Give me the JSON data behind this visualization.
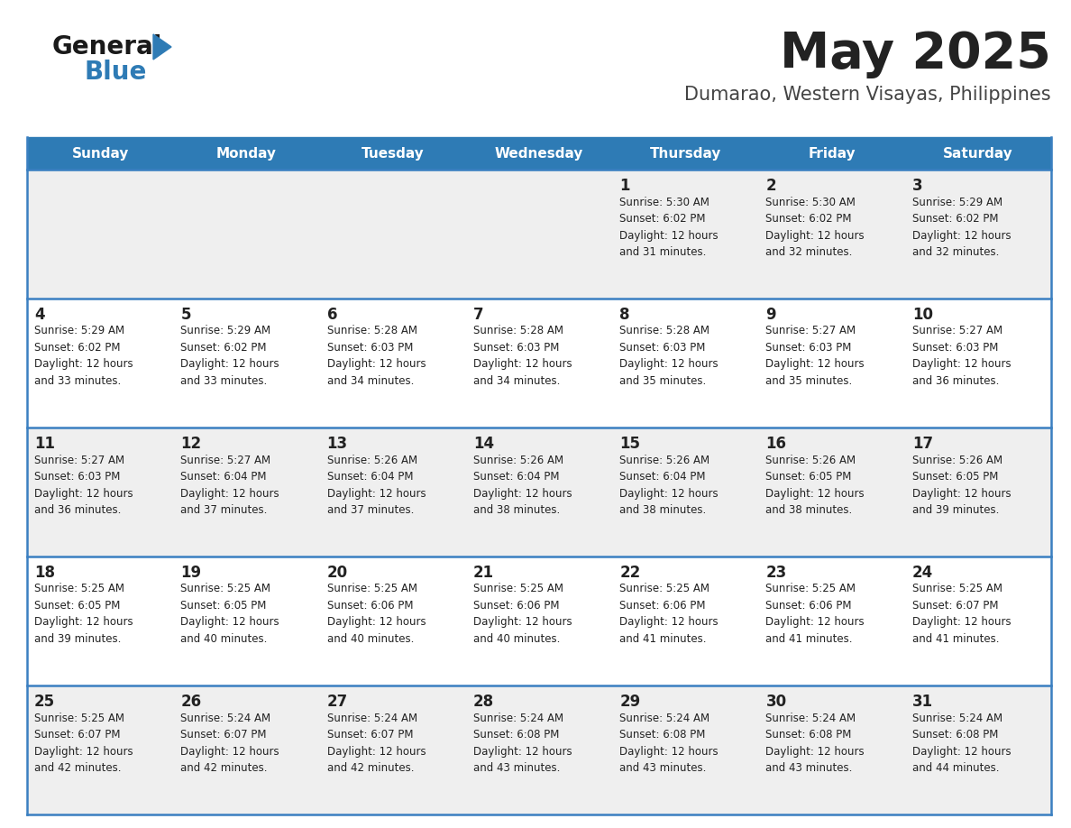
{
  "title": "May 2025",
  "subtitle": "Dumarao, Western Visayas, Philippines",
  "days_of_week": [
    "Sunday",
    "Monday",
    "Tuesday",
    "Wednesday",
    "Thursday",
    "Friday",
    "Saturday"
  ],
  "header_bg": "#2E7BB5",
  "header_text": "#FFFFFF",
  "row_bg_odd": "#EFEFEF",
  "row_bg_even": "#FFFFFF",
  "cell_border_color": "#3A7FC1",
  "day_num_color": "#222222",
  "info_text_color": "#222222",
  "title_color": "#222222",
  "subtitle_color": "#444444",
  "logo_general_color": "#1a1a1a",
  "logo_blue_color": "#2E7BB5",
  "calendar": [
    [
      null,
      null,
      null,
      null,
      {
        "day": 1,
        "sunrise": "5:30 AM",
        "sunset": "6:02 PM",
        "daylight_min": 31
      },
      {
        "day": 2,
        "sunrise": "5:30 AM",
        "sunset": "6:02 PM",
        "daylight_min": 32
      },
      {
        "day": 3,
        "sunrise": "5:29 AM",
        "sunset": "6:02 PM",
        "daylight_min": 32
      }
    ],
    [
      {
        "day": 4,
        "sunrise": "5:29 AM",
        "sunset": "6:02 PM",
        "daylight_min": 33
      },
      {
        "day": 5,
        "sunrise": "5:29 AM",
        "sunset": "6:02 PM",
        "daylight_min": 33
      },
      {
        "day": 6,
        "sunrise": "5:28 AM",
        "sunset": "6:03 PM",
        "daylight_min": 34
      },
      {
        "day": 7,
        "sunrise": "5:28 AM",
        "sunset": "6:03 PM",
        "daylight_min": 34
      },
      {
        "day": 8,
        "sunrise": "5:28 AM",
        "sunset": "6:03 PM",
        "daylight_min": 35
      },
      {
        "day": 9,
        "sunrise": "5:27 AM",
        "sunset": "6:03 PM",
        "daylight_min": 35
      },
      {
        "day": 10,
        "sunrise": "5:27 AM",
        "sunset": "6:03 PM",
        "daylight_min": 36
      }
    ],
    [
      {
        "day": 11,
        "sunrise": "5:27 AM",
        "sunset": "6:03 PM",
        "daylight_min": 36
      },
      {
        "day": 12,
        "sunrise": "5:27 AM",
        "sunset": "6:04 PM",
        "daylight_min": 37
      },
      {
        "day": 13,
        "sunrise": "5:26 AM",
        "sunset": "6:04 PM",
        "daylight_min": 37
      },
      {
        "day": 14,
        "sunrise": "5:26 AM",
        "sunset": "6:04 PM",
        "daylight_min": 38
      },
      {
        "day": 15,
        "sunrise": "5:26 AM",
        "sunset": "6:04 PM",
        "daylight_min": 38
      },
      {
        "day": 16,
        "sunrise": "5:26 AM",
        "sunset": "6:05 PM",
        "daylight_min": 38
      },
      {
        "day": 17,
        "sunrise": "5:26 AM",
        "sunset": "6:05 PM",
        "daylight_min": 39
      }
    ],
    [
      {
        "day": 18,
        "sunrise": "5:25 AM",
        "sunset": "6:05 PM",
        "daylight_min": 39
      },
      {
        "day": 19,
        "sunrise": "5:25 AM",
        "sunset": "6:05 PM",
        "daylight_min": 40
      },
      {
        "day": 20,
        "sunrise": "5:25 AM",
        "sunset": "6:06 PM",
        "daylight_min": 40
      },
      {
        "day": 21,
        "sunrise": "5:25 AM",
        "sunset": "6:06 PM",
        "daylight_min": 40
      },
      {
        "day": 22,
        "sunrise": "5:25 AM",
        "sunset": "6:06 PM",
        "daylight_min": 41
      },
      {
        "day": 23,
        "sunrise": "5:25 AM",
        "sunset": "6:06 PM",
        "daylight_min": 41
      },
      {
        "day": 24,
        "sunrise": "5:25 AM",
        "sunset": "6:07 PM",
        "daylight_min": 41
      }
    ],
    [
      {
        "day": 25,
        "sunrise": "5:25 AM",
        "sunset": "6:07 PM",
        "daylight_min": 42
      },
      {
        "day": 26,
        "sunrise": "5:24 AM",
        "sunset": "6:07 PM",
        "daylight_min": 42
      },
      {
        "day": 27,
        "sunrise": "5:24 AM",
        "sunset": "6:07 PM",
        "daylight_min": 42
      },
      {
        "day": 28,
        "sunrise": "5:24 AM",
        "sunset": "6:08 PM",
        "daylight_min": 43
      },
      {
        "day": 29,
        "sunrise": "5:24 AM",
        "sunset": "6:08 PM",
        "daylight_min": 43
      },
      {
        "day": 30,
        "sunrise": "5:24 AM",
        "sunset": "6:08 PM",
        "daylight_min": 43
      },
      {
        "day": 31,
        "sunrise": "5:24 AM",
        "sunset": "6:08 PM",
        "daylight_min": 44
      }
    ]
  ]
}
